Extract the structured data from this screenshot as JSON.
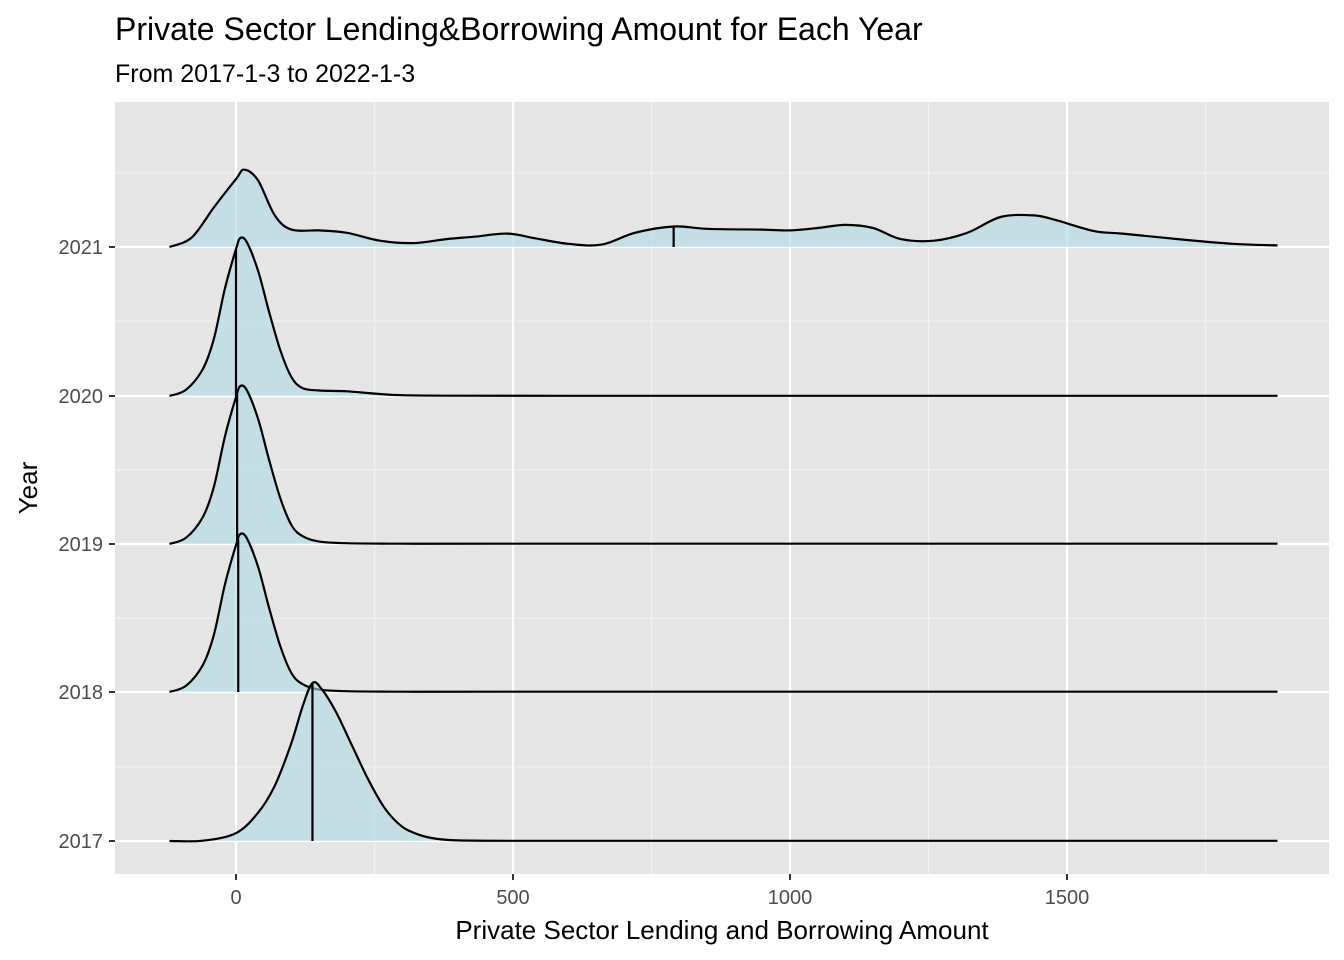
{
  "chart_data": {
    "type": "ridgeline",
    "title": "Private Sector Lending&Borrowing Amount for Each Year",
    "subtitle": "From 2017-1-3 to 2022-1-3",
    "xlabel": "Private Sector Lending and Borrowing Amount",
    "ylabel": "Year",
    "xlim": [
      -220,
      1940
    ],
    "x_ticks": [
      0,
      500,
      1000,
      1500
    ],
    "categories": [
      "2017",
      "2018",
      "2019",
      "2020",
      "2021"
    ],
    "fill_color": "#add8e6",
    "fill_opacity": 0.6,
    "line_color": "#000000",
    "panel_background": "#e5e5e5",
    "grid": true,
    "series": [
      {
        "year": "2017",
        "median": 138,
        "x": [
          -120,
          -60,
          0,
          40,
          70,
          100,
          120,
          138,
          155,
          180,
          210,
          240,
          270,
          300,
          330,
          360,
          400,
          500,
          700,
          1000,
          1500,
          1880
        ],
        "y": [
          0,
          0.002,
          0.05,
          0.18,
          0.35,
          0.62,
          0.85,
          1.0,
          0.96,
          0.82,
          0.6,
          0.38,
          0.2,
          0.09,
          0.04,
          0.015,
          0.004,
          0.001,
          0.001,
          0.001,
          0.001,
          0.001
        ]
      },
      {
        "year": "2018",
        "median": 4,
        "x": [
          -120,
          -90,
          -60,
          -40,
          -20,
          0,
          8,
          20,
          40,
          60,
          80,
          100,
          120,
          150,
          200,
          300,
          500,
          1000,
          1500,
          1880
        ],
        "y": [
          0,
          0.04,
          0.17,
          0.36,
          0.68,
          0.93,
          1.0,
          0.97,
          0.79,
          0.53,
          0.29,
          0.12,
          0.05,
          0.015,
          0.005,
          0.002,
          0.002,
          0.002,
          0.002,
          0.002
        ]
      },
      {
        "year": "2019",
        "median": 2,
        "x": [
          -120,
          -90,
          -60,
          -40,
          -20,
          0,
          8,
          20,
          40,
          60,
          80,
          100,
          120,
          150,
          200,
          300,
          500,
          1000,
          1500,
          1880
        ],
        "y": [
          0,
          0.04,
          0.17,
          0.36,
          0.68,
          0.93,
          1.0,
          0.97,
          0.79,
          0.53,
          0.29,
          0.12,
          0.05,
          0.015,
          0.005,
          0.002,
          0.002,
          0.002,
          0.002,
          0.002
        ]
      },
      {
        "year": "2020",
        "median": 0,
        "x": [
          -120,
          -90,
          -60,
          -40,
          -20,
          0,
          8,
          20,
          40,
          60,
          80,
          100,
          120,
          150,
          200,
          250,
          300,
          400,
          600,
          1000,
          1500,
          1880
        ],
        "y": [
          0,
          0.04,
          0.17,
          0.36,
          0.68,
          0.93,
          1.0,
          0.97,
          0.79,
          0.53,
          0.29,
          0.12,
          0.05,
          0.035,
          0.03,
          0.015,
          0.005,
          0.002,
          0.001,
          0.001,
          0.001,
          0.001
        ]
      },
      {
        "year": "2021",
        "median": 790,
        "x": [
          -120,
          -80,
          -40,
          0,
          15,
          40,
          70,
          100,
          150,
          200,
          260,
          320,
          380,
          430,
          490,
          540,
          600,
          660,
          720,
          790,
          850,
          950,
          1000,
          1050,
          1100,
          1150,
          1200,
          1260,
          1320,
          1380,
          1440,
          1480,
          1550,
          1600,
          1700,
          1800,
          1880
        ],
        "y": [
          0,
          0.06,
          0.25,
          0.43,
          0.49,
          0.42,
          0.2,
          0.11,
          0.105,
          0.09,
          0.04,
          0.025,
          0.05,
          0.065,
          0.085,
          0.055,
          0.02,
          0.015,
          0.09,
          0.13,
          0.115,
          0.11,
          0.105,
          0.12,
          0.14,
          0.12,
          0.05,
          0.04,
          0.09,
          0.19,
          0.2,
          0.17,
          0.1,
          0.085,
          0.05,
          0.02,
          0.01
        ]
      }
    ],
    "series_scale_note": "y values are relative density heights scaled so the tallest peak of 2020 reaches ~1.0; 2021's main peak has an outer curve reaching ~0.74"
  }
}
